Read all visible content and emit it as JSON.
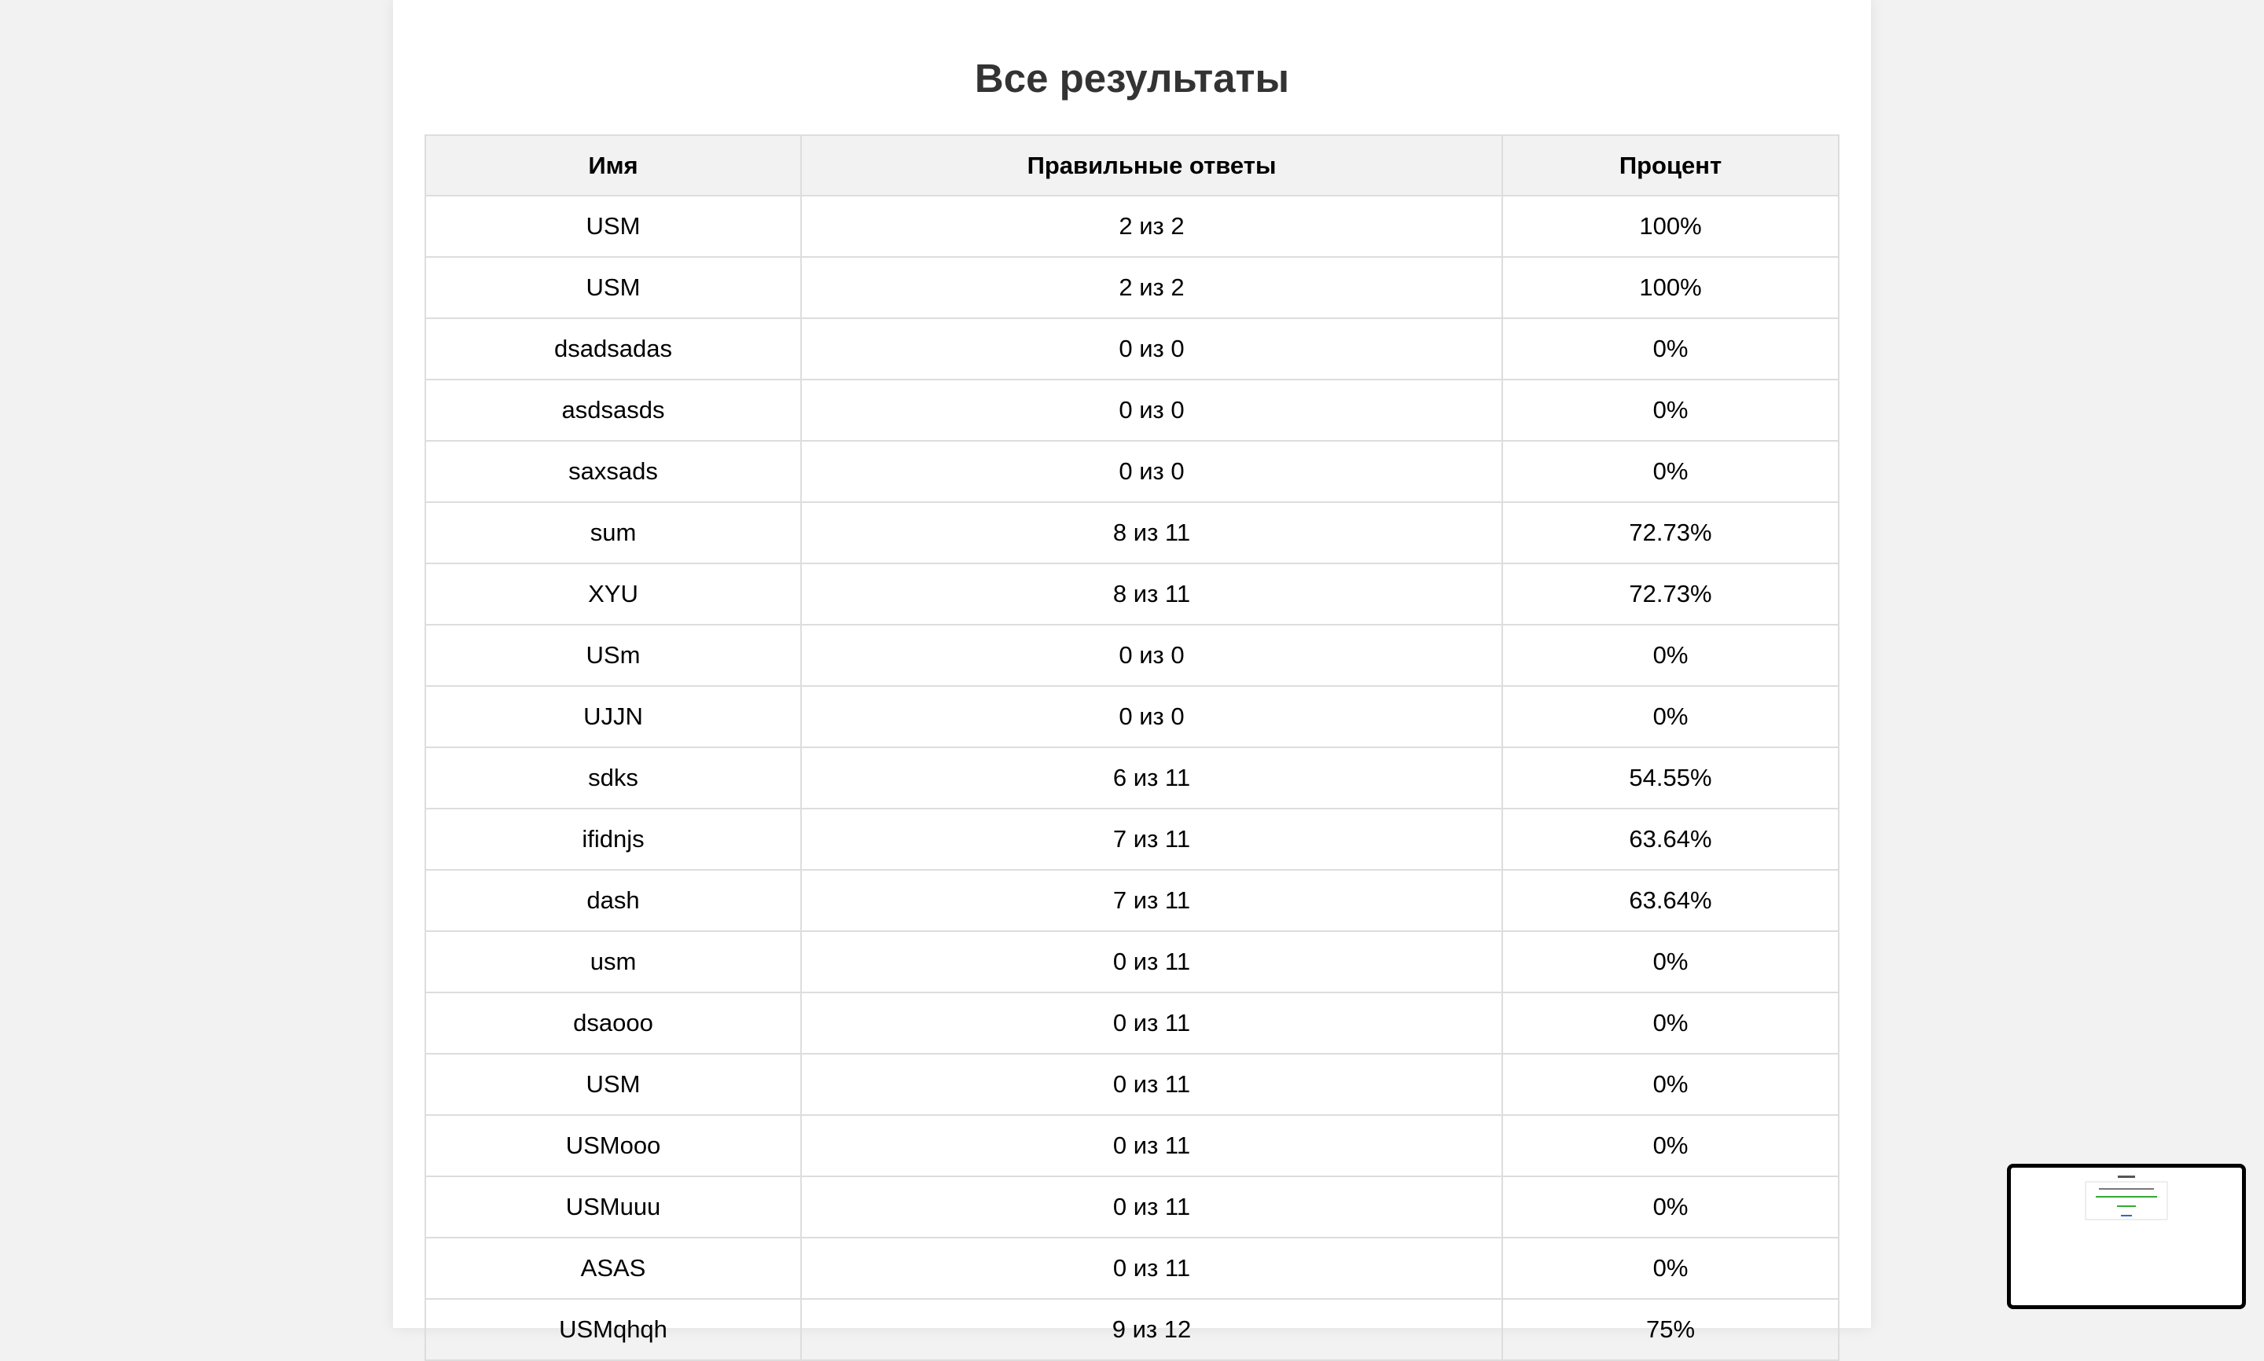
{
  "title": "Все результаты",
  "table": {
    "headers": [
      "Имя",
      "Правильные ответы",
      "Процент"
    ],
    "rows": [
      [
        "USM",
        "2 из 2",
        "100%"
      ],
      [
        "USM",
        "2 из 2",
        "100%"
      ],
      [
        "dsadsadas",
        "0 из 0",
        "0%"
      ],
      [
        "asdsasds",
        "0 из 0",
        "0%"
      ],
      [
        "saxsads",
        "0 из 0",
        "0%"
      ],
      [
        "sum",
        "8 из 11",
        "72.73%"
      ],
      [
        "XYU",
        "8 из 11",
        "72.73%"
      ],
      [
        "USm",
        "0 из 0",
        "0%"
      ],
      [
        "UJJN",
        "0 из 0",
        "0%"
      ],
      [
        "sdks",
        "6 из 11",
        "54.55%"
      ],
      [
        "ifidnjs",
        "7 из 11",
        "63.64%"
      ],
      [
        "dash",
        "7 из 11",
        "63.64%"
      ],
      [
        "usm",
        "0 из 11",
        "0%"
      ],
      [
        "dsaooo",
        "0 из 11",
        "0%"
      ],
      [
        "USM",
        "0 из 11",
        "0%"
      ],
      [
        "USMooo",
        "0 из 11",
        "0%"
      ],
      [
        "USMuuu",
        "0 из 11",
        "0%"
      ],
      [
        "ASAS",
        "0 из 11",
        "0%"
      ],
      [
        "USMqhqh",
        "9 из 12",
        "75%"
      ]
    ]
  }
}
